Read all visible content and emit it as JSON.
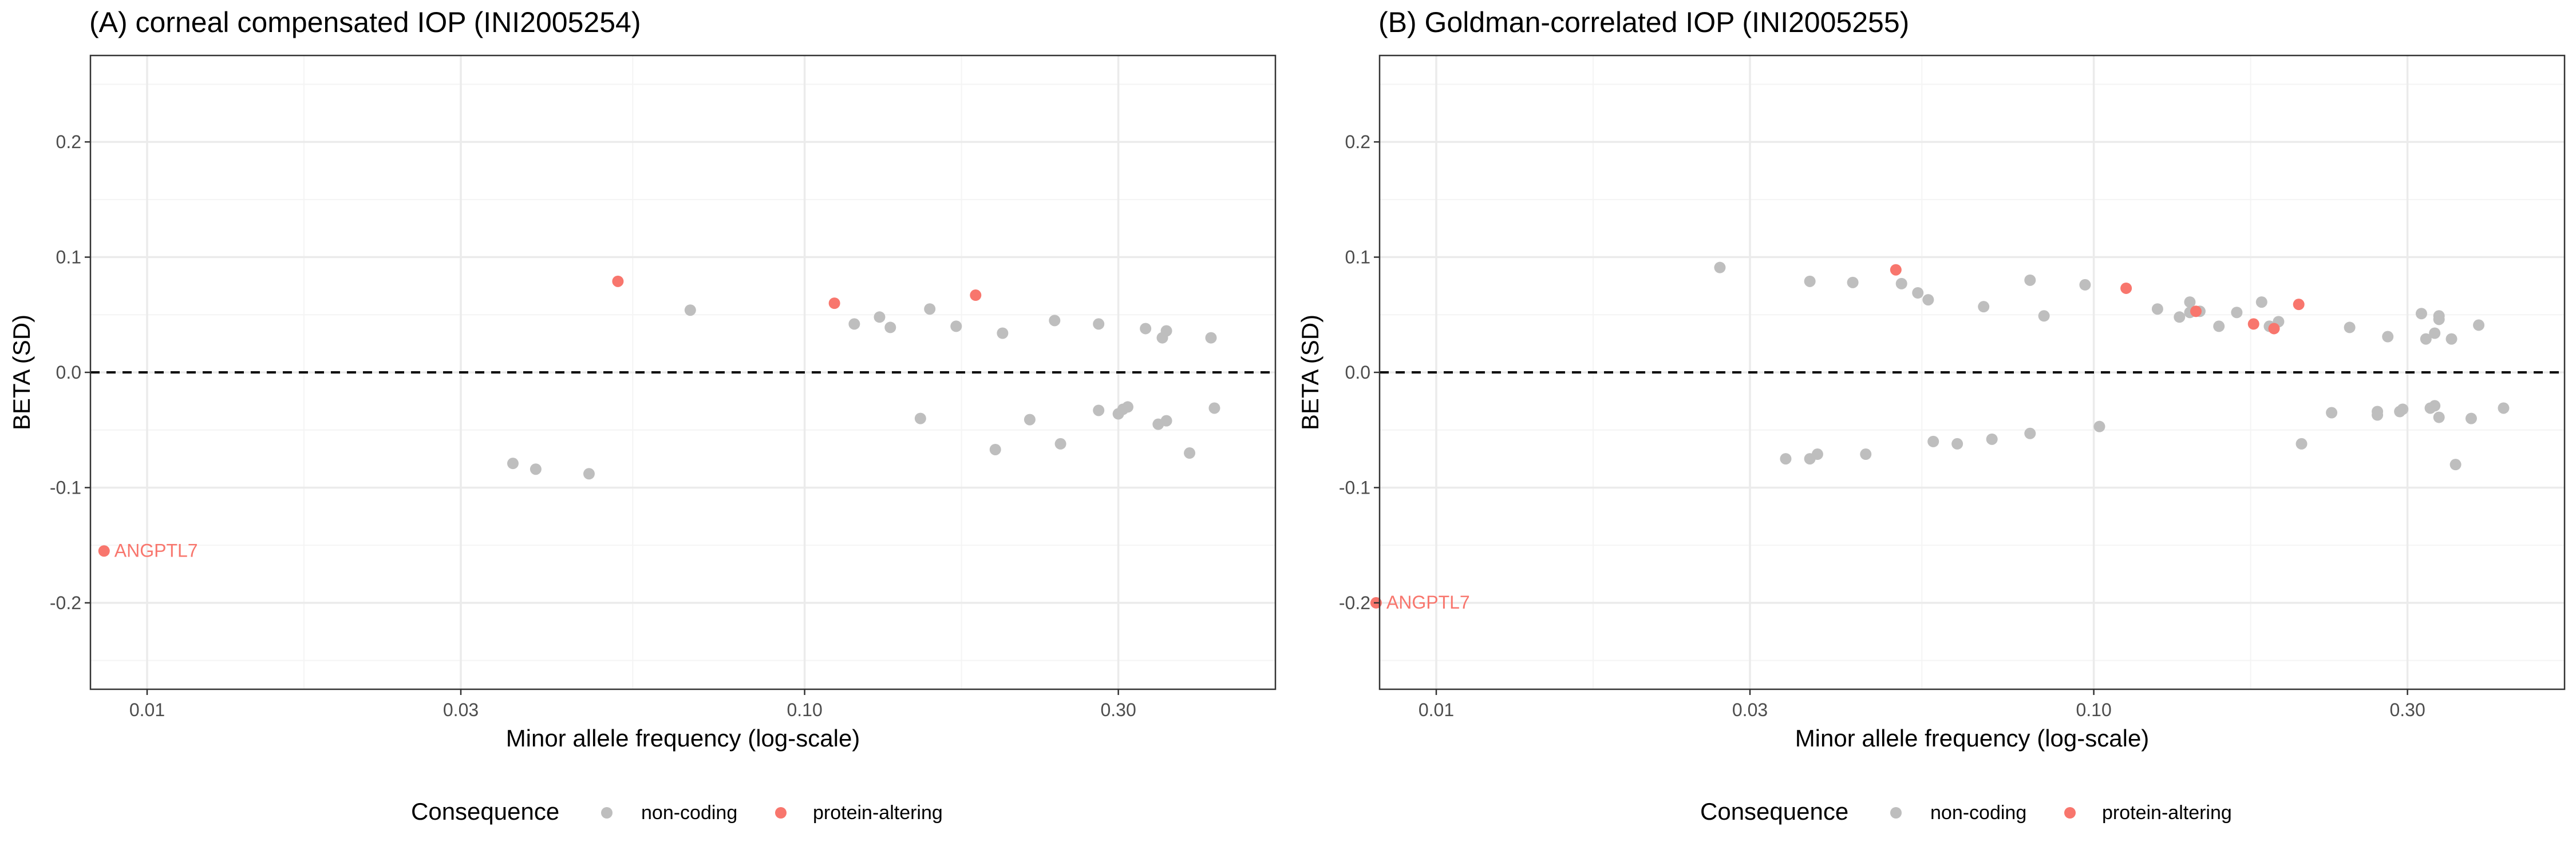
{
  "colors": {
    "non_coding": "#bebebe",
    "protein_altering": "#f8766d",
    "grid_major": "#ebebeb",
    "grid_minor": "#f4f4f4",
    "panel_border": "#333333",
    "zero_line": "#000000"
  },
  "legend": {
    "title": "Consequence",
    "items": [
      {
        "label": "non-coding",
        "color": "#bebebe"
      },
      {
        "label": "protein-altering",
        "color": "#f8766d"
      }
    ]
  },
  "chart_data": [
    {
      "type": "scatter",
      "title": "(A) corneal compensated IOP (INI2005254)",
      "xlabel": "Minor allele frequency (log-scale)",
      "ylabel": "BETA (SD)",
      "x_scale": "log10",
      "xlim": [
        0.0082,
        0.52
      ],
      "ylim": [
        -0.275,
        0.275
      ],
      "x_ticks": [
        0.01,
        0.03,
        0.1,
        0.3
      ],
      "x_tick_labels": [
        "0.01",
        "0.03",
        "0.10",
        "0.30"
      ],
      "y_ticks": [
        -0.2,
        -0.1,
        0.0,
        0.1,
        0.2
      ],
      "y_tick_labels": [
        "-0.2",
        "-0.1",
        "0.0",
        "0.1",
        "0.2"
      ],
      "grid": true,
      "reference_line": {
        "y": 0,
        "style": "dashed"
      },
      "annotations": [
        {
          "text": "ANGPTL7",
          "x": 0.0086,
          "y": -0.155
        }
      ],
      "series": [
        {
          "name": "non-coding",
          "points": [
            [
              0.036,
              -0.079
            ],
            [
              0.039,
              -0.084
            ],
            [
              0.047,
              -0.088
            ],
            [
              0.067,
              0.054
            ],
            [
              0.119,
              0.042
            ],
            [
              0.13,
              0.048
            ],
            [
              0.135,
              0.039
            ],
            [
              0.15,
              -0.04
            ],
            [
              0.155,
              0.055
            ],
            [
              0.17,
              0.04
            ],
            [
              0.195,
              -0.067
            ],
            [
              0.2,
              0.034
            ],
            [
              0.22,
              -0.041
            ],
            [
              0.24,
              0.045
            ],
            [
              0.245,
              -0.062
            ],
            [
              0.28,
              0.042
            ],
            [
              0.28,
              -0.033
            ],
            [
              0.3,
              -0.036
            ],
            [
              0.305,
              -0.032
            ],
            [
              0.31,
              -0.03
            ],
            [
              0.33,
              0.038
            ],
            [
              0.345,
              -0.045
            ],
            [
              0.35,
              0.03
            ],
            [
              0.355,
              0.036
            ],
            [
              0.355,
              -0.042
            ],
            [
              0.385,
              -0.07
            ],
            [
              0.415,
              0.03
            ],
            [
              0.42,
              -0.031
            ]
          ]
        },
        {
          "name": "protein-altering",
          "points": [
            [
              0.0086,
              -0.155
            ],
            [
              0.052,
              0.079
            ],
            [
              0.111,
              0.06
            ],
            [
              0.182,
              0.067
            ]
          ]
        }
      ]
    },
    {
      "type": "scatter",
      "title": "(B) Goldman-correlated IOP (INI2005255)",
      "xlabel": "Minor allele frequency (log-scale)",
      "ylabel": "BETA (SD)",
      "x_scale": "log10",
      "xlim": [
        0.0082,
        0.52
      ],
      "ylim": [
        -0.275,
        0.275
      ],
      "x_ticks": [
        0.01,
        0.03,
        0.1,
        0.3
      ],
      "x_tick_labels": [
        "0.01",
        "0.03",
        "0.10",
        "0.30"
      ],
      "y_ticks": [
        -0.2,
        -0.1,
        0.0,
        0.1,
        0.2
      ],
      "y_tick_labels": [
        "-0.2",
        "-0.1",
        "0.0",
        "0.1",
        "0.2"
      ],
      "grid": true,
      "reference_line": {
        "y": 0,
        "style": "dashed"
      },
      "annotations": [
        {
          "text": "ANGPTL7",
          "x": 0.0081,
          "y": -0.2
        }
      ],
      "series": [
        {
          "name": "non-coding",
          "points": [
            [
              0.027,
              0.091
            ],
            [
              0.034,
              -0.075
            ],
            [
              0.037,
              0.079
            ],
            [
              0.037,
              -0.075
            ],
            [
              0.038,
              -0.071
            ],
            [
              0.043,
              0.078
            ],
            [
              0.045,
              -0.071
            ],
            [
              0.051,
              0.077
            ],
            [
              0.054,
              0.069
            ],
            [
              0.056,
              0.063
            ],
            [
              0.057,
              -0.06
            ],
            [
              0.062,
              -0.062
            ],
            [
              0.068,
              0.057
            ],
            [
              0.07,
              -0.058
            ],
            [
              0.08,
              0.08
            ],
            [
              0.08,
              -0.053
            ],
            [
              0.084,
              0.049
            ],
            [
              0.097,
              0.076
            ],
            [
              0.102,
              -0.047
            ],
            [
              0.125,
              0.055
            ],
            [
              0.135,
              0.048
            ],
            [
              0.14,
              0.061
            ],
            [
              0.14,
              0.052
            ],
            [
              0.145,
              0.053
            ],
            [
              0.155,
              0.04
            ],
            [
              0.165,
              0.052
            ],
            [
              0.18,
              0.061
            ],
            [
              0.185,
              0.04
            ],
            [
              0.185,
              0.04
            ],
            [
              0.191,
              0.044
            ],
            [
              0.207,
              -0.062
            ],
            [
              0.23,
              -0.035
            ],
            [
              0.245,
              0.039
            ],
            [
              0.27,
              -0.034
            ],
            [
              0.27,
              -0.037
            ],
            [
              0.28,
              0.031
            ],
            [
              0.292,
              -0.034
            ],
            [
              0.295,
              -0.032
            ],
            [
              0.315,
              0.051
            ],
            [
              0.32,
              0.029
            ],
            [
              0.325,
              -0.031
            ],
            [
              0.33,
              0.034
            ],
            [
              0.33,
              -0.029
            ],
            [
              0.335,
              0.049
            ],
            [
              0.335,
              0.046
            ],
            [
              0.335,
              -0.039
            ],
            [
              0.35,
              0.029
            ],
            [
              0.355,
              -0.08
            ],
            [
              0.375,
              -0.04
            ],
            [
              0.385,
              0.041
            ],
            [
              0.42,
              -0.031
            ]
          ]
        },
        {
          "name": "protein-altering",
          "points": [
            [
              0.0081,
              -0.2
            ],
            [
              0.05,
              0.089
            ],
            [
              0.112,
              0.073
            ],
            [
              0.143,
              0.053
            ],
            [
              0.175,
              0.042
            ],
            [
              0.188,
              0.038
            ],
            [
              0.205,
              0.059
            ]
          ]
        }
      ]
    }
  ]
}
